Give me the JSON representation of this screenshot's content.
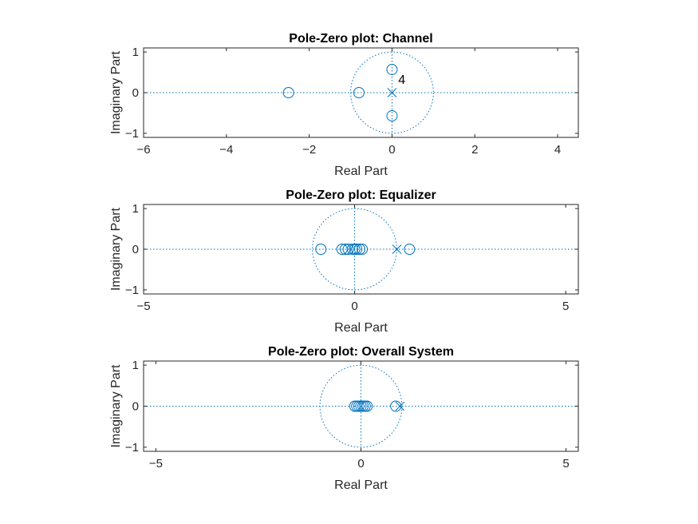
{
  "chart_data": [
    {
      "type": "scatter",
      "title": "Pole-Zero plot: Channel",
      "xlabel": "Real Part",
      "ylabel": "Imaginary Part",
      "xlim": [
        -6,
        4.5
      ],
      "ylim": [
        -1.1,
        1.1
      ],
      "xticks": [
        -6,
        -4,
        -2,
        0,
        2,
        4
      ],
      "yticks": [
        -1,
        0,
        1
      ],
      "color": "#0072bd",
      "unit_circle": true,
      "zeros": [
        [
          -2.5,
          0
        ],
        [
          -0.8,
          0
        ],
        [
          0.0,
          0.57
        ],
        [
          0.0,
          -0.57
        ]
      ],
      "poles": [
        [
          0,
          0
        ]
      ],
      "annotations": [
        {
          "text": "4",
          "x": 0.15,
          "y": 0.22
        }
      ]
    },
    {
      "type": "scatter",
      "title": "Pole-Zero plot: Equalizer",
      "xlabel": "Real Part",
      "ylabel": "Imaginary Part",
      "xlim": [
        -5,
        5.3
      ],
      "ylim": [
        -1.1,
        1.1
      ],
      "xticks": [
        -5,
        0,
        5
      ],
      "yticks": [
        -1,
        0,
        1
      ],
      "color": "#0072bd",
      "unit_circle": true,
      "zeros": [
        [
          -0.8,
          0
        ],
        [
          -0.3,
          0
        ],
        [
          -0.22,
          0
        ],
        [
          -0.15,
          0
        ],
        [
          -0.05,
          0
        ],
        [
          0.0,
          0
        ],
        [
          0.05,
          0
        ],
        [
          0.12,
          0
        ],
        [
          0.18,
          0
        ],
        [
          1.3,
          0
        ]
      ],
      "poles": [
        [
          1.0,
          0
        ]
      ],
      "annotations": []
    },
    {
      "type": "scatter",
      "title": "Pole-Zero plot: Overall System",
      "xlabel": "Real Part",
      "ylabel": "Imaginary Part",
      "xlim": [
        -5.3,
        5.3
      ],
      "ylim": [
        -1.1,
        1.1
      ],
      "xticks": [
        -5,
        0,
        5
      ],
      "yticks": [
        -1,
        0,
        1
      ],
      "color": "#0072bd",
      "unit_circle": true,
      "zeros": [
        [
          -0.15,
          0
        ],
        [
          -0.1,
          0
        ],
        [
          -0.05,
          0
        ],
        [
          0.0,
          0
        ],
        [
          0.05,
          0
        ],
        [
          0.1,
          0
        ],
        [
          0.15,
          0
        ],
        [
          0.85,
          0
        ]
      ],
      "poles": [
        [
          0.95,
          0
        ]
      ],
      "annotations": []
    }
  ]
}
